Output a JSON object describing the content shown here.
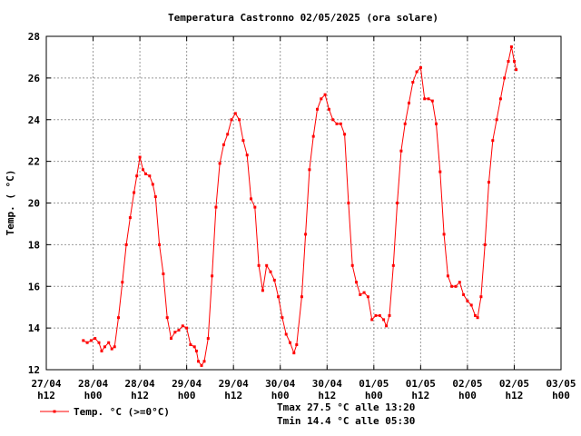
{
  "chart_data": {
    "type": "line",
    "title": "Temperatura Castronno 02/05/2025 (ora solare)",
    "xlabel": "",
    "ylabel": "Temp. ( °C)",
    "ylim": [
      12,
      28
    ],
    "y_ticks": [
      12,
      14,
      16,
      18,
      20,
      22,
      24,
      26,
      28
    ],
    "x_ticks": [
      {
        "day": "27/04",
        "hour": "h12"
      },
      {
        "day": "28/04",
        "hour": "h00"
      },
      {
        "day": "28/04",
        "hour": "h12"
      },
      {
        "day": "29/04",
        "hour": "h00"
      },
      {
        "day": "29/04",
        "hour": "h12"
      },
      {
        "day": "30/04",
        "hour": "h00"
      },
      {
        "day": "30/04",
        "hour": "h12"
      },
      {
        "day": "01/05",
        "hour": "h00"
      },
      {
        "day": "01/05",
        "hour": "h12"
      },
      {
        "day": "02/05",
        "hour": "h00"
      },
      {
        "day": "02/05",
        "hour": "h12"
      },
      {
        "day": "03/05",
        "hour": "h00"
      }
    ],
    "x_unit": "hours after 27/04 h12",
    "xlim": [
      0,
      132
    ],
    "grid": true,
    "legend_position": "bottom-left",
    "series": [
      {
        "name": "Temp. °C (>=0°C)",
        "color": "#ff0000",
        "points": [
          [
            9.5,
            13.4
          ],
          [
            10.5,
            13.3
          ],
          [
            11.5,
            13.4
          ],
          [
            12.5,
            13.5
          ],
          [
            13.5,
            13.3
          ],
          [
            14.2,
            12.9
          ],
          [
            15,
            13.1
          ],
          [
            16,
            13.3
          ],
          [
            16.8,
            13.0
          ],
          [
            17.5,
            13.1
          ],
          [
            18.5,
            14.5
          ],
          [
            19.5,
            16.2
          ],
          [
            20.5,
            18.0
          ],
          [
            21.5,
            19.3
          ],
          [
            22.5,
            20.5
          ],
          [
            23.2,
            21.3
          ],
          [
            24,
            22.2
          ],
          [
            24.8,
            21.6
          ],
          [
            25.5,
            21.4
          ],
          [
            26.5,
            21.3
          ],
          [
            27.3,
            20.9
          ],
          [
            28,
            20.3
          ],
          [
            29,
            18.0
          ],
          [
            30,
            16.6
          ],
          [
            31,
            14.5
          ],
          [
            32,
            13.5
          ],
          [
            33,
            13.8
          ],
          [
            34,
            13.9
          ],
          [
            35,
            14.1
          ],
          [
            36,
            14.0
          ],
          [
            37,
            13.2
          ],
          [
            38,
            13.1
          ],
          [
            38.5,
            12.9
          ],
          [
            39,
            12.4
          ],
          [
            39.8,
            12.2
          ],
          [
            40.5,
            12.4
          ],
          [
            41.5,
            13.5
          ],
          [
            42.5,
            16.5
          ],
          [
            43.5,
            19.8
          ],
          [
            44.5,
            21.9
          ],
          [
            45.5,
            22.8
          ],
          [
            46.5,
            23.3
          ],
          [
            47.5,
            24.0
          ],
          [
            48.5,
            24.3
          ],
          [
            49.5,
            24.0
          ],
          [
            50.5,
            23.0
          ],
          [
            51.5,
            22.3
          ],
          [
            52.5,
            20.2
          ],
          [
            53.5,
            19.8
          ],
          [
            54.5,
            17.0
          ],
          [
            55.5,
            15.8
          ],
          [
            56.5,
            17.0
          ],
          [
            57.5,
            16.7
          ],
          [
            58.5,
            16.3
          ],
          [
            59.5,
            15.5
          ],
          [
            60.5,
            14.5
          ],
          [
            61.5,
            13.7
          ],
          [
            62.5,
            13.3
          ],
          [
            63.5,
            12.8
          ],
          [
            64.2,
            13.2
          ],
          [
            65.5,
            15.5
          ],
          [
            66.5,
            18.5
          ],
          [
            67.5,
            21.6
          ],
          [
            68.5,
            23.2
          ],
          [
            69.5,
            24.5
          ],
          [
            70.5,
            25.0
          ],
          [
            71.5,
            25.2
          ],
          [
            72.5,
            24.5
          ],
          [
            73.5,
            24.0
          ],
          [
            74.5,
            23.8
          ],
          [
            75.5,
            23.8
          ],
          [
            76.5,
            23.3
          ],
          [
            77.5,
            20.0
          ],
          [
            78.5,
            17.0
          ],
          [
            79.5,
            16.2
          ],
          [
            80.5,
            15.6
          ],
          [
            81.5,
            15.7
          ],
          [
            82.5,
            15.5
          ],
          [
            83.5,
            14.4
          ],
          [
            84.5,
            14.6
          ],
          [
            85.5,
            14.6
          ],
          [
            86.5,
            14.4
          ],
          [
            87.2,
            14.1
          ],
          [
            88,
            14.6
          ],
          [
            89,
            17.0
          ],
          [
            90,
            20.0
          ],
          [
            91,
            22.5
          ],
          [
            92,
            23.8
          ],
          [
            93,
            24.8
          ],
          [
            94,
            25.8
          ],
          [
            95,
            26.3
          ],
          [
            96,
            26.5
          ],
          [
            97,
            25.0
          ],
          [
            98,
            25.0
          ],
          [
            99,
            24.9
          ],
          [
            100,
            23.8
          ],
          [
            101,
            21.5
          ],
          [
            102,
            18.5
          ],
          [
            103,
            16.5
          ],
          [
            104,
            16.0
          ],
          [
            105,
            16.0
          ],
          [
            106,
            16.2
          ],
          [
            107,
            15.6
          ],
          [
            108,
            15.3
          ],
          [
            109,
            15.1
          ],
          [
            110,
            14.6
          ],
          [
            110.6,
            14.5
          ],
          [
            111.5,
            15.5
          ],
          [
            112.5,
            18.0
          ],
          [
            113.5,
            21.0
          ],
          [
            114.5,
            23.0
          ],
          [
            115.5,
            24.0
          ],
          [
            116.5,
            25.0
          ],
          [
            117.5,
            26.0
          ],
          [
            118.5,
            26.8
          ],
          [
            119.3,
            27.5
          ],
          [
            120,
            26.8
          ],
          [
            120.5,
            26.4
          ]
        ]
      }
    ],
    "annotations": [
      "Tmax 27.5 °C alle 13:20",
      "Tmin 14.4 °C alle 05:30"
    ]
  }
}
